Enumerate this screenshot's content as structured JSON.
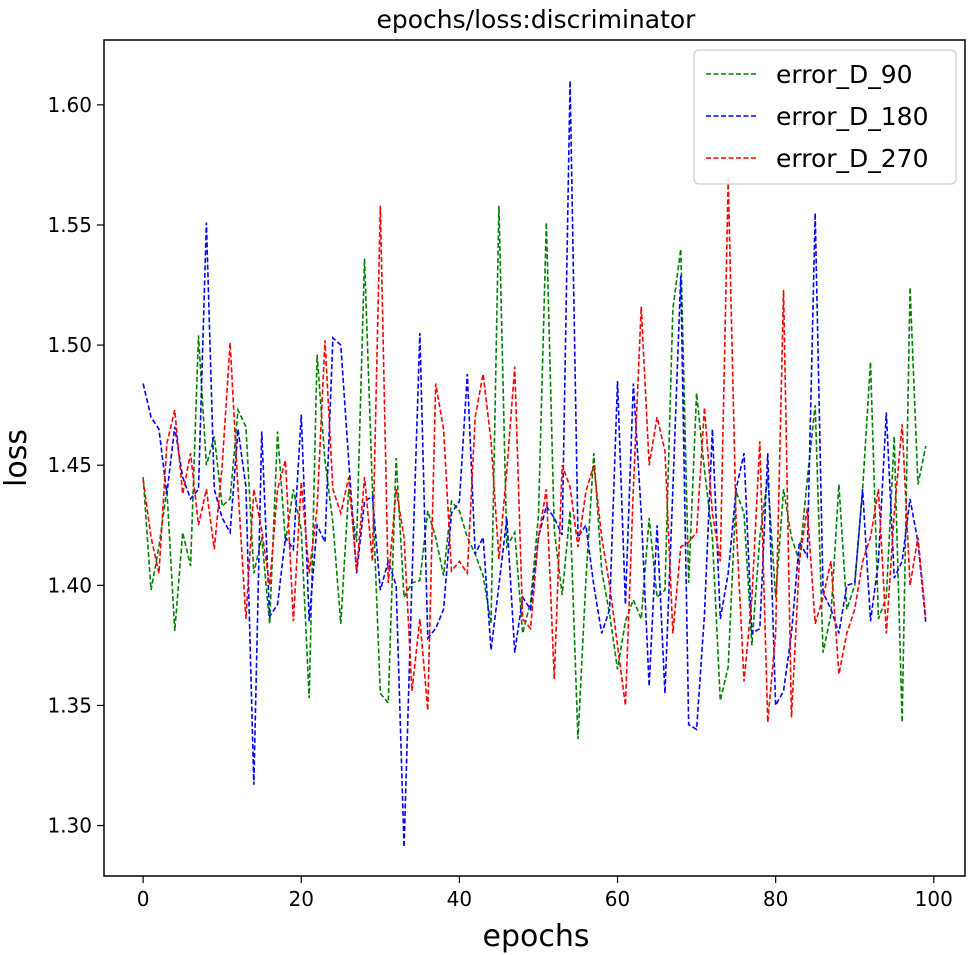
{
  "chart_data": {
    "type": "line",
    "title": "epochs/loss:discriminator",
    "xlabel": "epochs",
    "ylabel": "loss",
    "xlim": [
      -4.95,
      103.95
    ],
    "ylim": [
      1.279,
      1.627
    ],
    "xticks": [
      0,
      20,
      40,
      60,
      80,
      100
    ],
    "yticks": [
      1.3,
      1.35,
      1.4,
      1.45,
      1.5,
      1.55,
      1.6
    ],
    "ytick_labels": [
      "1.30",
      "1.35",
      "1.40",
      "1.45",
      "1.50",
      "1.55",
      "1.60"
    ],
    "grid": false,
    "legend_position": "top-right",
    "line_style": "dashed",
    "x": [
      0,
      1,
      2,
      3,
      4,
      5,
      6,
      7,
      8,
      9,
      10,
      11,
      12,
      13,
      14,
      15,
      16,
      17,
      18,
      19,
      20,
      21,
      22,
      23,
      24,
      25,
      26,
      27,
      28,
      29,
      30,
      31,
      32,
      33,
      34,
      35,
      36,
      37,
      38,
      39,
      40,
      41,
      42,
      43,
      44,
      45,
      46,
      47,
      48,
      49,
      50,
      51,
      52,
      53,
      54,
      55,
      56,
      57,
      58,
      59,
      60,
      61,
      62,
      63,
      64,
      65,
      66,
      67,
      68,
      69,
      70,
      71,
      72,
      73,
      74,
      75,
      76,
      77,
      78,
      79,
      80,
      81,
      82,
      83,
      84,
      85,
      86,
      87,
      88,
      89,
      90,
      91,
      92,
      93,
      94,
      95,
      96,
      97,
      98,
      99
    ],
    "series": [
      {
        "name": "error_D_90",
        "color": "#008000",
        "values": [
          1.445,
          1.398,
          1.416,
          1.44,
          1.381,
          1.422,
          1.408,
          1.504,
          1.45,
          1.462,
          1.433,
          1.436,
          1.473,
          1.466,
          1.405,
          1.42,
          1.384,
          1.464,
          1.418,
          1.44,
          1.423,
          1.353,
          1.496,
          1.452,
          1.426,
          1.384,
          1.44,
          1.418,
          1.536,
          1.44,
          1.355,
          1.351,
          1.453,
          1.395,
          1.401,
          1.402,
          1.431,
          1.42,
          1.404,
          1.435,
          1.431,
          1.42,
          1.413,
          1.404,
          1.384,
          1.558,
          1.416,
          1.422,
          1.38,
          1.393,
          1.429,
          1.551,
          1.423,
          1.396,
          1.431,
          1.336,
          1.402,
          1.455,
          1.406,
          1.388,
          1.365,
          1.385,
          1.394,
          1.386,
          1.428,
          1.395,
          1.398,
          1.515,
          1.54,
          1.401,
          1.48,
          1.448,
          1.42,
          1.352,
          1.366,
          1.439,
          1.43,
          1.375,
          1.42,
          1.445,
          1.395,
          1.44,
          1.42,
          1.41,
          1.444,
          1.475,
          1.372,
          1.388,
          1.442,
          1.39,
          1.4,
          1.44,
          1.493,
          1.386,
          1.395,
          1.462,
          1.343,
          1.524,
          1.442,
          1.458
        ]
      },
      {
        "name": "error_D_180",
        "color": "#0000ff",
        "values": [
          1.484,
          1.47,
          1.465,
          1.438,
          1.466,
          1.445,
          1.436,
          1.44,
          1.551,
          1.44,
          1.428,
          1.422,
          1.465,
          1.441,
          1.317,
          1.464,
          1.387,
          1.392,
          1.42,
          1.415,
          1.471,
          1.385,
          1.425,
          1.418,
          1.503,
          1.5,
          1.452,
          1.405,
          1.435,
          1.437,
          1.398,
          1.41,
          1.4,
          1.291,
          1.402,
          1.505,
          1.378,
          1.382,
          1.39,
          1.43,
          1.435,
          1.488,
          1.413,
          1.42,
          1.373,
          1.4,
          1.428,
          1.372,
          1.395,
          1.39,
          1.42,
          1.433,
          1.428,
          1.421,
          1.61,
          1.42,
          1.425,
          1.4,
          1.38,
          1.39,
          1.485,
          1.392,
          1.484,
          1.43,
          1.358,
          1.425,
          1.355,
          1.44,
          1.529,
          1.342,
          1.34,
          1.388,
          1.465,
          1.386,
          1.405,
          1.44,
          1.455,
          1.38,
          1.382,
          1.455,
          1.35,
          1.356,
          1.38,
          1.418,
          1.412,
          1.555,
          1.397,
          1.39,
          1.38,
          1.4,
          1.401,
          1.44,
          1.385,
          1.41,
          1.472,
          1.403,
          1.41,
          1.436,
          1.418,
          1.384
        ]
      },
      {
        "name": "error_D_270",
        "color": "#ff0000",
        "values": [
          1.444,
          1.42,
          1.405,
          1.459,
          1.473,
          1.438,
          1.455,
          1.425,
          1.44,
          1.415,
          1.45,
          1.501,
          1.44,
          1.386,
          1.44,
          1.423,
          1.4,
          1.44,
          1.452,
          1.385,
          1.443,
          1.405,
          1.432,
          1.502,
          1.44,
          1.43,
          1.445,
          1.406,
          1.445,
          1.41,
          1.558,
          1.401,
          1.44,
          1.42,
          1.356,
          1.386,
          1.348,
          1.484,
          1.465,
          1.406,
          1.41,
          1.405,
          1.47,
          1.488,
          1.46,
          1.411,
          1.448,
          1.491,
          1.386,
          1.382,
          1.42,
          1.44,
          1.361,
          1.45,
          1.441,
          1.416,
          1.439,
          1.45,
          1.42,
          1.4,
          1.375,
          1.35,
          1.44,
          1.516,
          1.45,
          1.47,
          1.456,
          1.38,
          1.416,
          1.418,
          1.422,
          1.474,
          1.43,
          1.41,
          1.569,
          1.426,
          1.36,
          1.395,
          1.46,
          1.343,
          1.38,
          1.523,
          1.345,
          1.41,
          1.432,
          1.384,
          1.395,
          1.41,
          1.363,
          1.38,
          1.39,
          1.41,
          1.42,
          1.44,
          1.38,
          1.43,
          1.467,
          1.4,
          1.42,
          1.386
        ]
      }
    ]
  }
}
